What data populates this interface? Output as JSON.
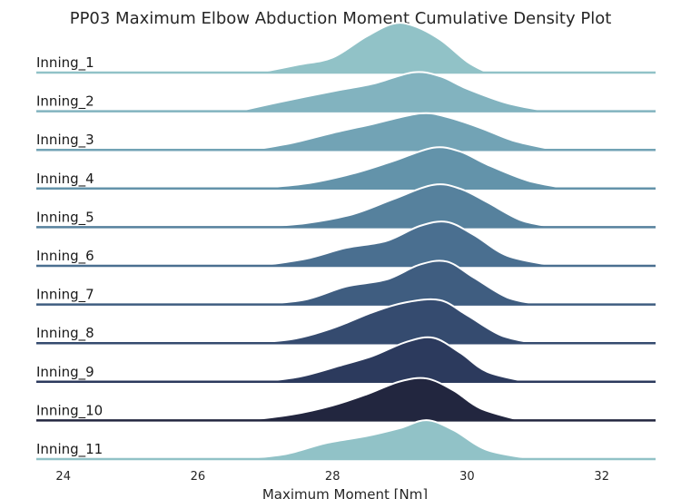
{
  "chart_data": {
    "type": "ridgeline",
    "title": "PP03 Maximum Elbow Abduction Moment Cumulative Density Plot",
    "xlabel": "Maximum Moment [Nm]",
    "ylabel": "",
    "xlim": [
      23.6,
      32.8
    ],
    "xticks": [
      24,
      26,
      28,
      30,
      32
    ],
    "grid": false,
    "colors": [
      "#91c2c7",
      "#82b3bf",
      "#72a3b5",
      "#6393aa",
      "#56819d",
      "#4a6f90",
      "#3f5d80",
      "#354b6f",
      "#2c3a5d",
      "#22263f",
      "#91c2c7"
    ],
    "series": [
      {
        "name": "Inning_1",
        "x": [
          26.9,
          27.5,
          28.0,
          28.5,
          28.9,
          29.2,
          29.6,
          30.0,
          30.3
        ],
        "density": [
          0.0,
          0.16,
          0.3,
          0.72,
          0.98,
          0.94,
          0.66,
          0.22,
          0.0
        ]
      },
      {
        "name": "Inning_2",
        "x": [
          26.6,
          27.2,
          28.0,
          28.6,
          29.2,
          29.6,
          30.0,
          30.6,
          31.2
        ],
        "density": [
          0.0,
          0.18,
          0.4,
          0.55,
          0.78,
          0.7,
          0.45,
          0.16,
          0.0
        ]
      },
      {
        "name": "Inning_3",
        "x": [
          26.8,
          27.4,
          28.0,
          28.6,
          29.3,
          29.7,
          30.2,
          30.7,
          31.3
        ],
        "density": [
          0.0,
          0.14,
          0.34,
          0.52,
          0.73,
          0.66,
          0.44,
          0.18,
          0.0
        ]
      },
      {
        "name": "Inning_4",
        "x": [
          26.8,
          27.6,
          28.3,
          28.9,
          29.5,
          29.9,
          30.3,
          30.9,
          31.5
        ],
        "density": [
          0.0,
          0.1,
          0.3,
          0.55,
          0.82,
          0.74,
          0.48,
          0.16,
          0.0
        ]
      },
      {
        "name": "Inning_5",
        "x": [
          26.8,
          27.6,
          28.3,
          28.9,
          29.5,
          29.9,
          30.3,
          30.8,
          31.3
        ],
        "density": [
          0.0,
          0.08,
          0.26,
          0.56,
          0.85,
          0.77,
          0.5,
          0.14,
          0.0
        ]
      },
      {
        "name": "Inning_6",
        "x": [
          26.9,
          27.6,
          28.2,
          28.8,
          29.3,
          29.7,
          30.1,
          30.6,
          31.3
        ],
        "density": [
          0.0,
          0.14,
          0.36,
          0.5,
          0.8,
          0.88,
          0.62,
          0.2,
          0.0
        ]
      },
      {
        "name": "Inning_7",
        "x": [
          26.9,
          27.6,
          28.2,
          28.8,
          29.3,
          29.7,
          30.1,
          30.6,
          31.1
        ],
        "density": [
          0.0,
          0.1,
          0.36,
          0.5,
          0.8,
          0.86,
          0.54,
          0.14,
          0.0
        ]
      },
      {
        "name": "Inning_8",
        "x": [
          26.7,
          27.4,
          28.0,
          28.6,
          29.1,
          29.6,
          30.0,
          30.5,
          31.0
        ],
        "density": [
          0.0,
          0.08,
          0.3,
          0.62,
          0.82,
          0.86,
          0.56,
          0.16,
          0.0
        ]
      },
      {
        "name": "Inning_9",
        "x": [
          26.9,
          27.5,
          28.1,
          28.6,
          29.1,
          29.5,
          29.9,
          30.3,
          30.9
        ],
        "density": [
          0.0,
          0.1,
          0.32,
          0.52,
          0.8,
          0.88,
          0.58,
          0.2,
          0.0
        ]
      },
      {
        "name": "Inning_10",
        "x": [
          26.7,
          27.4,
          28.0,
          28.5,
          29.0,
          29.4,
          29.8,
          30.2,
          30.8
        ],
        "density": [
          0.0,
          0.12,
          0.3,
          0.52,
          0.78,
          0.84,
          0.6,
          0.24,
          0.0
        ]
      },
      {
        "name": "Inning_11",
        "x": [
          26.6,
          27.3,
          27.9,
          28.5,
          29.0,
          29.4,
          29.8,
          30.3,
          31.0
        ],
        "density": [
          0.0,
          0.1,
          0.32,
          0.46,
          0.62,
          0.78,
          0.58,
          0.18,
          0.0
        ]
      }
    ]
  }
}
